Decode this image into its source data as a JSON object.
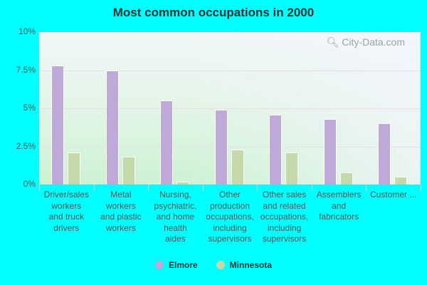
{
  "title": "Most common occupations in 2000",
  "watermark": "City-Data.com",
  "colors": {
    "Elmore": "#bfa9d9",
    "Minnesota": "#c4d9a9"
  },
  "y_ticks": [
    "10%",
    "7.5%",
    "5%",
    "2.5%",
    "0%"
  ],
  "legend": [
    {
      "name": "Elmore",
      "color": "#bfa9d9"
    },
    {
      "name": "Minnesota",
      "color": "#c4d9a9"
    }
  ],
  "categories_display": [
    [
      "Driver/sales",
      "workers",
      "and truck",
      "drivers"
    ],
    [
      "Metal",
      "workers",
      "and plastic",
      "workers"
    ],
    [
      "Nursing,",
      "psychiatric,",
      "and home",
      "health",
      "aides"
    ],
    [
      "Other",
      "production",
      "occupations,",
      "including",
      "supervisors"
    ],
    [
      "Other sales",
      "and related",
      "occupations,",
      "including",
      "supervisors"
    ],
    [
      "Assemblers",
      "and",
      "fabricators"
    ],
    [
      "Customer ..."
    ]
  ],
  "chart_data": {
    "type": "bar",
    "title": "Most common occupations in 2000",
    "xlabel": "",
    "ylabel": "",
    "ylim": [
      0,
      10
    ],
    "y_tick_labels": [
      "0%",
      "2.5%",
      "5%",
      "7.5%",
      "10%"
    ],
    "grid": true,
    "legend_position": "bottom",
    "categories": [
      "Driver/sales workers and truck drivers",
      "Metal workers and plastic workers",
      "Nursing, psychiatric, and home health aides",
      "Other production occupations, including supervisors",
      "Other sales and related occupations, including supervisors",
      "Assemblers and fabricators",
      "Customer ..."
    ],
    "series": [
      {
        "name": "Elmore",
        "values": [
          7.8,
          7.5,
          5.5,
          4.9,
          4.6,
          4.3,
          4.0
        ]
      },
      {
        "name": "Minnesota",
        "values": [
          2.1,
          1.8,
          0.2,
          2.3,
          2.1,
          0.8,
          0.5
        ]
      }
    ]
  }
}
